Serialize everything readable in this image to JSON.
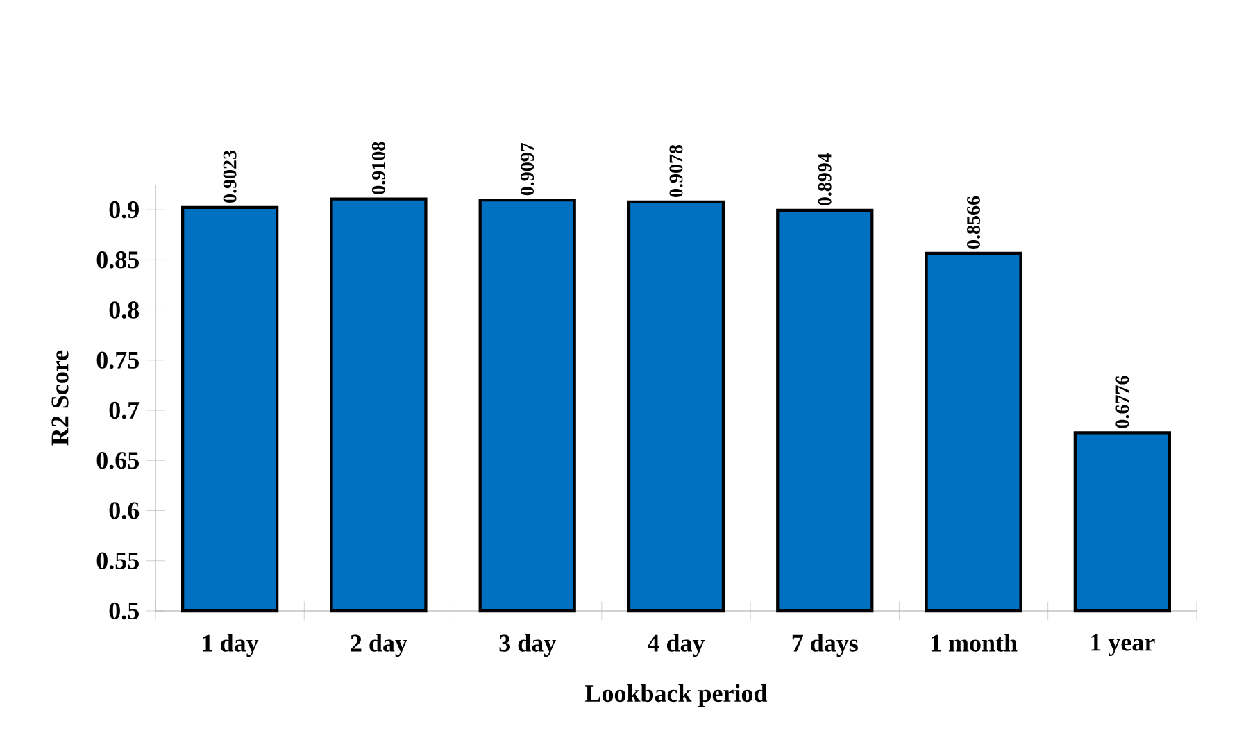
{
  "chart_data": {
    "type": "bar",
    "xlabel": "Lookback period",
    "ylabel": "R2 Score",
    "categories": [
      "1 day",
      "2 day",
      "3 day",
      "4 day",
      "7 days",
      "1 month",
      "1 year"
    ],
    "values": [
      0.9023,
      0.9108,
      0.9097,
      0.9078,
      0.8994,
      0.8566,
      0.6776
    ],
    "color": "#0070c0",
    "data_labels": true,
    "grid": false,
    "ylim": [
      0.5,
      0.925
    ],
    "yticks": [
      0.5,
      0.55,
      0.6,
      0.65,
      0.7,
      0.75,
      0.8,
      0.85,
      0.9
    ]
  }
}
